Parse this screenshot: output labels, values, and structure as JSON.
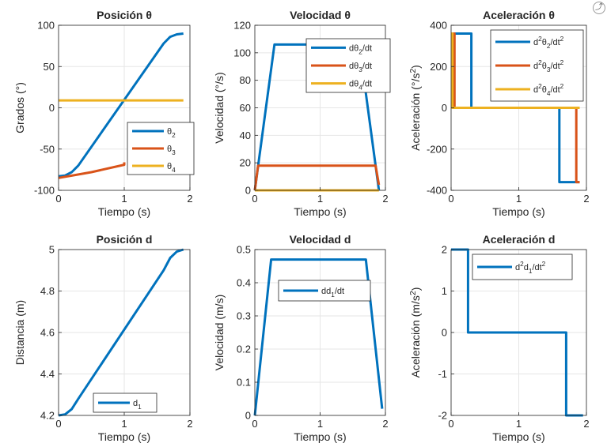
{
  "toolbar": {
    "icon": "export-icon"
  },
  "colors": {
    "blue": "#0072BD",
    "orange": "#D95319",
    "yellow": "#EDB120"
  },
  "chart_data": [
    {
      "id": "posicion-theta",
      "type": "line",
      "title": "Posición θ",
      "xlabel": "Tiempo (s)",
      "ylabel": "Grados (°)",
      "xlim": [
        0,
        2
      ],
      "ylim": [
        -100,
        100
      ],
      "xticks": [
        0,
        1,
        2
      ],
      "xticklabels": [
        "0",
        "1",
        "2"
      ],
      "yticks": [
        -100,
        -50,
        0,
        50,
        100
      ],
      "yticklabels": [
        "-100",
        "-50",
        "0",
        "50",
        "100"
      ],
      "grid": true,
      "legend_position": "bottom-right",
      "series": [
        {
          "name": "θ2",
          "color": "#0072BD",
          "x": [
            0,
            0.1,
            0.2,
            0.3,
            1.6,
            1.7,
            1.8,
            1.9
          ],
          "y": [
            -83,
            -82,
            -78,
            -70,
            78,
            86,
            89,
            90
          ]
        },
        {
          "name": "θ3",
          "color": "#D95319",
          "x": [
            0,
            0.5,
            1.0,
            1.0
          ],
          "y": [
            -85,
            -78,
            -69,
            -66
          ]
        },
        {
          "name": "θ4",
          "color": "#EDB120",
          "x": [
            0,
            1.9
          ],
          "y": [
            9,
            9
          ]
        }
      ]
    },
    {
      "id": "velocidad-theta",
      "type": "line",
      "title": "Velocidad θ",
      "xlabel": "Tiempo (s)",
      "ylabel": "Velocidad (°/s)",
      "xlim": [
        0,
        2
      ],
      "ylim": [
        0,
        120
      ],
      "xticks": [
        0,
        1,
        2
      ],
      "xticklabels": [
        "0",
        "1",
        "2"
      ],
      "yticks": [
        0,
        20,
        40,
        60,
        80,
        100,
        120
      ],
      "yticklabels": [
        "0",
        "20",
        "40",
        "60",
        "80",
        "100",
        "120"
      ],
      "grid": true,
      "legend_position": "top-right",
      "series": [
        {
          "name": "dθ2/dt",
          "color": "#0072BD",
          "x": [
            0,
            0.3,
            1.6,
            1.9
          ],
          "y": [
            0,
            106,
            106,
            0
          ]
        },
        {
          "name": "dθ3/dt",
          "color": "#D95319",
          "x": [
            0,
            0.05,
            1.85,
            1.9
          ],
          "y": [
            0,
            18,
            18,
            4
          ]
        },
        {
          "name": "dθ4/dt",
          "color": "#EDB120",
          "x": [
            0,
            1.9
          ],
          "y": [
            0,
            0
          ]
        }
      ]
    },
    {
      "id": "aceleracion-theta",
      "type": "line",
      "title": "Aceleración θ",
      "xlabel": "Tiempo (s)",
      "ylabel": "Aceleración (°/s²)",
      "xlim": [
        0,
        2
      ],
      "ylim": [
        -400,
        400
      ],
      "xticks": [
        0,
        1,
        2
      ],
      "xticklabels": [
        "0",
        "1",
        "2"
      ],
      "yticks": [
        -400,
        -200,
        0,
        200,
        400
      ],
      "yticklabels": [
        "-400",
        "-200",
        "0",
        "200",
        "400"
      ],
      "grid": true,
      "legend_position": "top-right",
      "series": [
        {
          "name": "d²θ2/dt²",
          "color": "#0072BD",
          "x": [
            0,
            0.3,
            0.3,
            1.6,
            1.6,
            1.9
          ],
          "y": [
            360,
            360,
            0,
            0,
            -360,
            -360
          ]
        },
        {
          "name": "d²θ3/dt²",
          "color": "#D95319",
          "x": [
            0,
            0.05,
            0.05,
            1.85,
            1.85,
            1.9
          ],
          "y": [
            360,
            360,
            0,
            0,
            -360,
            -360
          ]
        },
        {
          "name": "d²θ4/dt²",
          "color": "#EDB120",
          "x": [
            0,
            0.02,
            0.02,
            1.9
          ],
          "y": [
            360,
            360,
            0,
            0
          ]
        }
      ]
    },
    {
      "id": "posicion-d",
      "type": "line",
      "title": "Posición d",
      "xlabel": "Tiempo (s)",
      "ylabel": "Distancia (m)",
      "xlim": [
        0,
        2
      ],
      "ylim": [
        4.2,
        5.0
      ],
      "xticks": [
        0,
        1,
        2
      ],
      "xticklabels": [
        "0",
        "1",
        "2"
      ],
      "yticks": [
        4.2,
        4.4,
        4.6,
        4.8,
        5.0
      ],
      "yticklabels": [
        "4.2",
        "4.4",
        "4.6",
        "4.8",
        "5"
      ],
      "grid": true,
      "legend_position": "bottom-center",
      "series": [
        {
          "name": "d1",
          "color": "#0072BD",
          "x": [
            0,
            0.1,
            0.2,
            0.3,
            1.6,
            1.7,
            1.8,
            1.9
          ],
          "y": [
            4.2,
            4.205,
            4.23,
            4.28,
            4.9,
            4.96,
            4.99,
            5.0
          ]
        }
      ]
    },
    {
      "id": "velocidad-d",
      "type": "line",
      "title": "Velocidad d",
      "xlabel": "Tiempo (s)",
      "ylabel": "Velocidad (m/s)",
      "xlim": [
        0,
        2
      ],
      "ylim": [
        0,
        0.5
      ],
      "xticks": [
        0,
        1,
        2
      ],
      "xticklabels": [
        "0",
        "1",
        "2"
      ],
      "yticks": [
        0,
        0.1,
        0.2,
        0.3,
        0.4,
        0.5
      ],
      "yticklabels": [
        "0",
        "0.1",
        "0.2",
        "0.3",
        "0.4",
        "0.5"
      ],
      "grid": true,
      "legend_position": "upper-left",
      "series": [
        {
          "name": "dd1/dt",
          "color": "#0072BD",
          "x": [
            0,
            0.25,
            1.7,
            1.95
          ],
          "y": [
            0,
            0.47,
            0.47,
            0.02
          ]
        }
      ]
    },
    {
      "id": "aceleracion-d",
      "type": "line",
      "title": "Aceleración d",
      "xlabel": "Tiempo (s)",
      "ylabel": "Aceleración (m/s²)",
      "xlim": [
        0,
        2
      ],
      "ylim": [
        -2,
        2
      ],
      "xticks": [
        0,
        1,
        2
      ],
      "xticklabels": [
        "0",
        "1",
        "2"
      ],
      "yticks": [
        -2,
        -1,
        0,
        1,
        2
      ],
      "yticklabels": [
        "-2",
        "-1",
        "0",
        "1",
        "2"
      ],
      "grid": true,
      "legend_position": "top-center",
      "series": [
        {
          "name": "d²d1/dt²",
          "color": "#0072BD",
          "x": [
            0,
            0.25,
            0.25,
            1.7,
            1.7,
            1.95
          ],
          "y": [
            2,
            2,
            0,
            0,
            -2,
            -2
          ]
        }
      ]
    }
  ]
}
